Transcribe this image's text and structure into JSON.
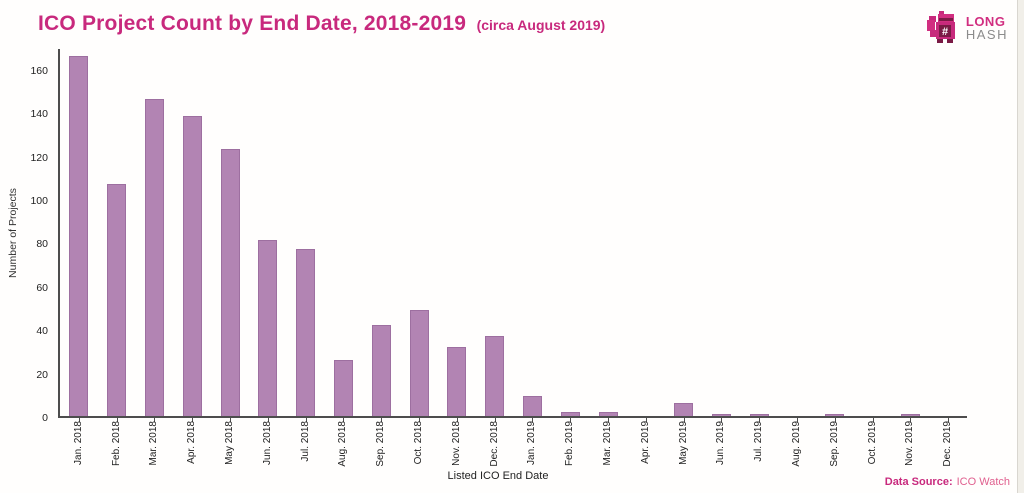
{
  "header": {
    "title": "ICO Project Count by End Date, 2018-2019",
    "subtitle": "(circa August 2019)"
  },
  "logo": {
    "line1": "LONG",
    "line2": "HASH",
    "symbol": "#"
  },
  "chart_data": {
    "type": "bar",
    "title": "ICO Project Count by End Date, 2018-2019 (circa August 2019)",
    "xlabel": "Listed ICO End Date",
    "ylabel": "Number of Projects",
    "categories": [
      "Jan. 2018",
      "Feb. 2018",
      "Mar. 2018",
      "Apr. 2018",
      "May 2018",
      "Jun. 2018",
      "Jul. 2018",
      "Aug. 2018",
      "Sep. 2018",
      "Oct. 2018",
      "Nov. 2018",
      "Dec. 2018",
      "Jan. 2019",
      "Feb. 2019",
      "Mar. 2019",
      "Apr. 2019",
      "May 2019",
      "Jun. 2019",
      "Jul. 2019",
      "Aug. 2019",
      "Sep. 2019",
      "Oct. 2019",
      "Nov. 2019",
      "Dec. 2019"
    ],
    "values": [
      166,
      107,
      146,
      138,
      123,
      81,
      77,
      26,
      42,
      49,
      32,
      37,
      9,
      2,
      2,
      0,
      6,
      1,
      1,
      0,
      1,
      0,
      1,
      0
    ],
    "ylim": [
      0,
      170
    ],
    "yticks": [
      0,
      20,
      40,
      60,
      80,
      100,
      120,
      140,
      160
    ],
    "grid": false,
    "legend_position": "none",
    "bar_color": "#b284b3"
  },
  "footer": {
    "source_label": "Data Source:",
    "source_value": "ICO Watch"
  },
  "colors": {
    "accent": "#c8297d",
    "bar": "#b284b3",
    "bar_edge": "#9d6fa0",
    "axis": "#4d4d4d",
    "source_value": "#e0608f",
    "logo_gray": "#8c8c8c"
  }
}
